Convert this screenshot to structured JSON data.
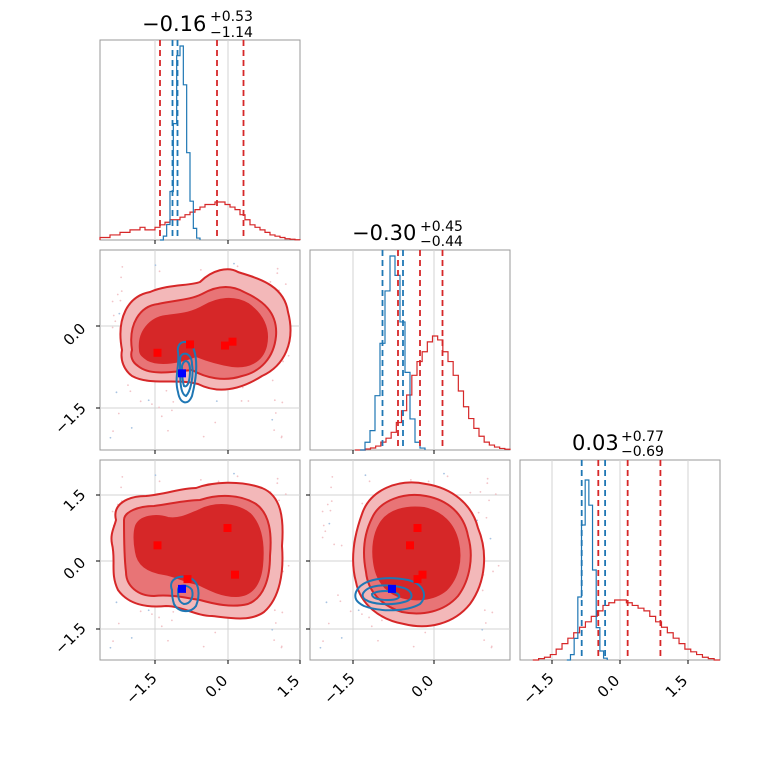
{
  "chart_data": {
    "type": "corner",
    "parameters": 3,
    "tick_labels": {
      "col0": [
        "−1.5",
        "0.0",
        "1.5"
      ],
      "col1": [
        "−1.5",
        "0.0"
      ],
      "col2": [
        "−1.5",
        "0.0",
        "1.5"
      ],
      "row1": [
        "0.0",
        "−1.5"
      ],
      "row2": [
        "1.5",
        "0.0",
        "−1.5"
      ]
    },
    "ranges": [
      [
        -2.5,
        1.5
      ],
      [
        -2.5,
        1.5
      ],
      [
        -2.5,
        2.2
      ]
    ],
    "panels": [
      {
        "id": "p0",
        "kind": "histogram",
        "title": {
          "main": "−0.16",
          "sup": "+0.53",
          "sub": "−1.14"
        },
        "red_quantiles": [
          -1.3,
          -0.16,
          0.37
        ],
        "blue_quantiles": [
          -1.05,
          -0.95
        ],
        "red_hist": [
          0.01,
          0.01,
          0.02,
          0.02,
          0.03,
          0.03,
          0.04,
          0.04,
          0.05,
          0.04,
          0.04,
          0.05,
          0.06,
          0.07,
          0.08,
          0.08,
          0.09,
          0.1,
          0.11,
          0.12,
          0.13,
          0.14,
          0.14,
          0.15,
          0.15,
          0.14,
          0.13,
          0.12,
          0.1,
          0.08,
          0.06,
          0.05,
          0.04,
          0.03,
          0.02,
          0.015,
          0.01,
          0.005,
          0.003,
          0.001
        ],
        "blue_hist": [
          0.0,
          0.02,
          0.08,
          0.25,
          0.6,
          0.95,
          1.0,
          0.8,
          0.45,
          0.2,
          0.06,
          0.01
        ]
      },
      {
        "id": "p1",
        "kind": "histogram",
        "title": {
          "main": "−0.30",
          "sup": "+0.45",
          "sub": "−0.44"
        },
        "red_quantiles": [
          -0.74,
          -0.3,
          0.15
        ],
        "blue_quantiles": [
          -1.05,
          -0.64
        ],
        "red_hist": [
          0.0,
          0.0,
          0.005,
          0.01,
          0.02,
          0.04,
          0.06,
          0.09,
          0.14,
          0.2,
          0.28,
          0.38,
          0.45,
          0.5,
          0.55,
          0.58,
          0.56,
          0.5,
          0.45,
          0.38,
          0.3,
          0.22,
          0.16,
          0.11,
          0.07,
          0.04,
          0.025,
          0.015,
          0.008,
          0.004
        ],
        "blue_hist": [
          0.0,
          0.04,
          0.1,
          0.28,
          0.55,
          0.82,
          1.0,
          0.9,
          0.66,
          0.4,
          0.16,
          0.04,
          0.01
        ]
      },
      {
        "id": "p2",
        "kind": "histogram",
        "title": {
          "main": "0.03",
          "sup": "+0.77",
          "sub": "−0.69"
        },
        "red_quantiles": [
          -0.66,
          0.03,
          0.8
        ],
        "blue_quantiles": [
          -1.05,
          -0.5
        ],
        "red_hist": [
          0.0,
          0.005,
          0.01,
          0.02,
          0.04,
          0.06,
          0.08,
          0.1,
          0.12,
          0.14,
          0.16,
          0.18,
          0.2,
          0.21,
          0.22,
          0.22,
          0.21,
          0.2,
          0.19,
          0.18,
          0.16,
          0.14,
          0.12,
          0.1,
          0.08,
          0.06,
          0.04,
          0.03,
          0.02,
          0.01,
          0.005,
          0.0
        ],
        "blue_hist": [
          0.0,
          0.03,
          0.12,
          0.35,
          0.75,
          1.0,
          0.86,
          0.5,
          0.18,
          0.05,
          0.01
        ]
      },
      {
        "id": "p10",
        "kind": "scatter2d",
        "red_markers": [
          [
            -1.35,
            -0.45
          ],
          [
            -0.7,
            -0.3
          ],
          [
            0.0,
            -0.32
          ],
          [
            0.15,
            -0.25
          ]
        ],
        "blue_markers": [
          [
            -0.86,
            -0.82
          ]
        ]
      },
      {
        "id": "p20",
        "kind": "scatter2d",
        "red_markers": [
          [
            -1.35,
            0.28
          ],
          [
            0.05,
            0.67
          ],
          [
            0.2,
            -0.38
          ],
          [
            -0.75,
            -0.48
          ]
        ],
        "blue_markers": [
          [
            -0.86,
            -0.7
          ]
        ]
      },
      {
        "id": "p21",
        "kind": "scatter2d",
        "red_markers": [
          [
            -0.35,
            0.67
          ],
          [
            -0.5,
            0.28
          ],
          [
            -0.25,
            -0.38
          ],
          [
            -0.35,
            -0.48
          ]
        ],
        "blue_markers": [
          [
            -0.86,
            -0.7
          ]
        ]
      }
    ],
    "colors": {
      "red": "#d62728",
      "red_mid": "#e87476",
      "red_light": "#f3b8b9",
      "blue": "#1f77b4",
      "marker_blue": "#0000ff",
      "marker_red": "#ff0000"
    }
  }
}
